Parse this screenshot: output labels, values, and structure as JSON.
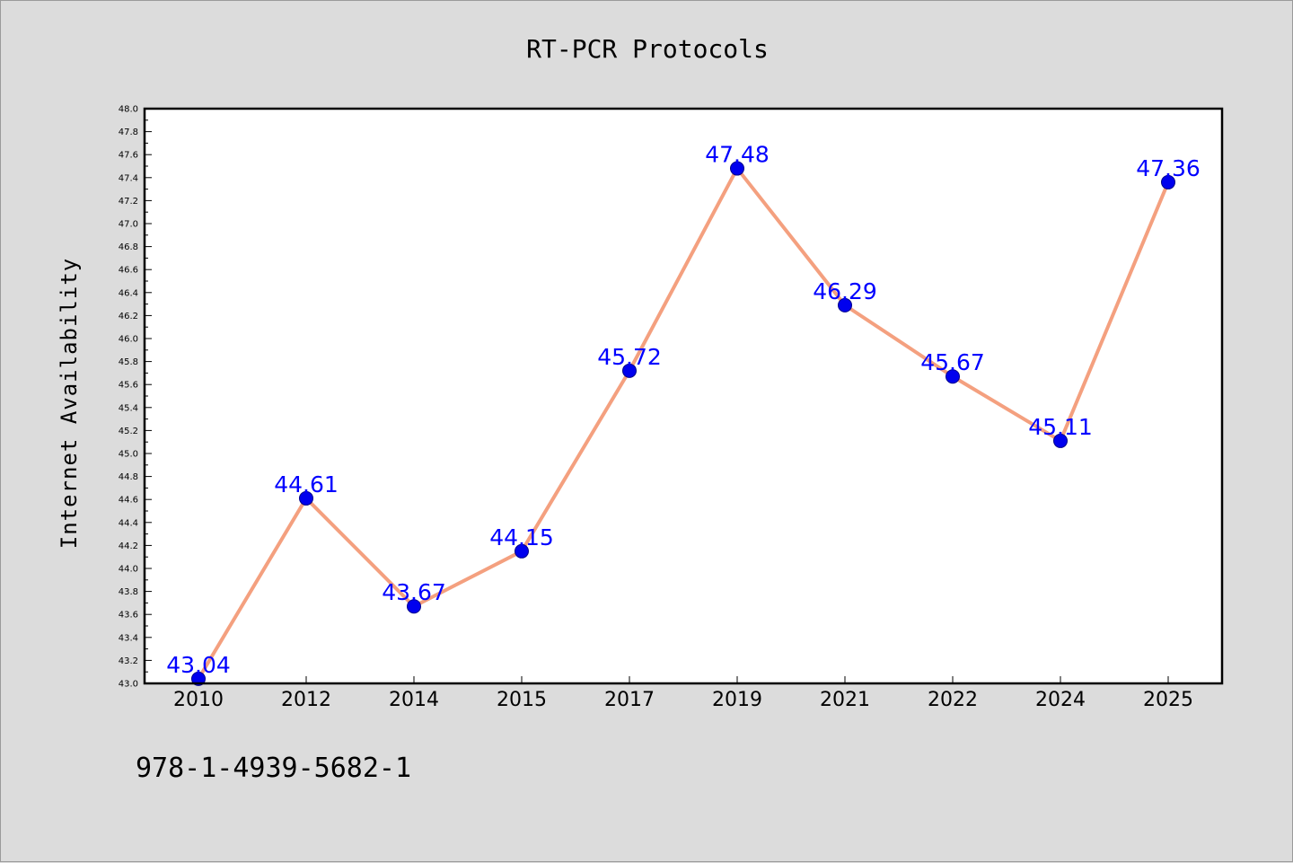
{
  "footnote": "978-1-4939-5682-1",
  "colors": {
    "background": "#dcdcdc",
    "plot_background": "#ffffff",
    "line": "#f4a07f",
    "marker": "#0000ee",
    "data_label": "#0000ff"
  },
  "chart_data": {
    "type": "line",
    "title": "RT-PCR Protocols",
    "xlabel": "",
    "ylabel": "Internet Availability",
    "categories": [
      "2010",
      "2012",
      "2014",
      "2015",
      "2017",
      "2019",
      "2021",
      "2022",
      "2024",
      "2025"
    ],
    "series": [
      {
        "values": [
          43.04,
          44.61,
          43.67,
          44.15,
          45.72,
          47.48,
          46.29,
          45.67,
          45.11,
          47.36
        ],
        "labels": [
          "43.04",
          "44.61",
          "43.67",
          "44.15",
          "45.72",
          "47.48",
          "46.29",
          "45.67",
          "45.11",
          "47.36"
        ]
      }
    ],
    "ylim": [
      43.0,
      48.0
    ],
    "yticks": [
      "43.0",
      "43.2",
      "43.4",
      "43.6",
      "43.8",
      "44.0",
      "44.2",
      "44.4",
      "44.6",
      "44.8",
      "45.0",
      "45.2",
      "45.4",
      "45.6",
      "45.8",
      "46.0",
      "46.2",
      "46.4",
      "46.6",
      "46.8",
      "47.0",
      "47.2",
      "47.4",
      "47.6",
      "47.8",
      "48.0"
    ],
    "grid": false,
    "legend": "none"
  }
}
